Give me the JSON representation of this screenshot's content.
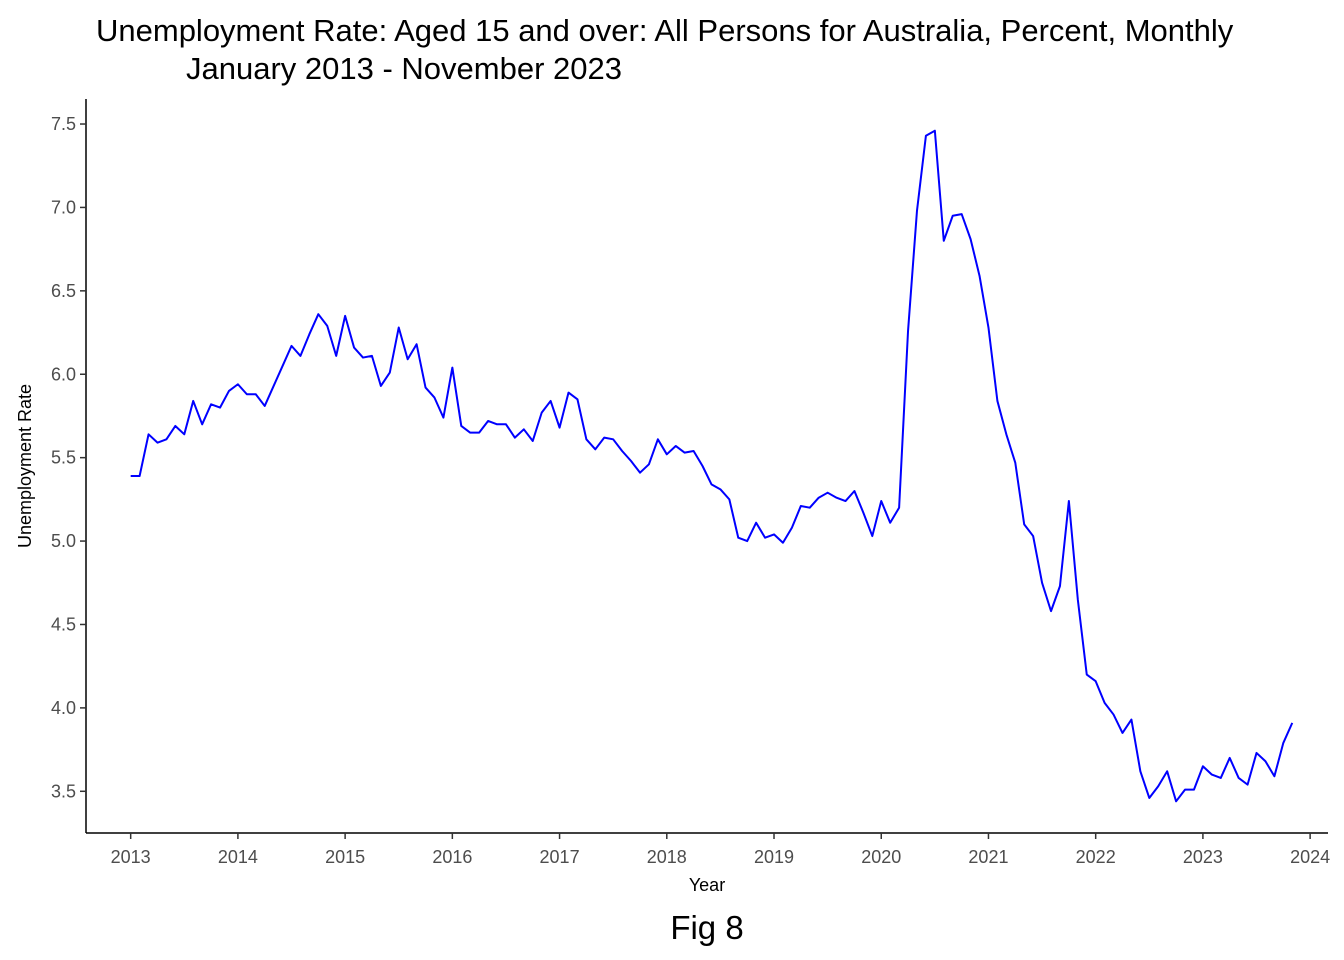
{
  "chart_data": {
    "type": "line",
    "title": "Unemployment Rate: Aged 15 and over: All Persons for Australia, Percent, Monthly",
    "subtitle": "January 2013 - November 2023",
    "xlabel": "Year",
    "ylabel": "Unemployment Rate",
    "caption": "Fig 8",
    "line_color": "#0000ff",
    "grid": false,
    "legend": "none",
    "xlim": [
      "2012-08",
      "2024-03"
    ],
    "ylim": [
      3.25,
      7.65
    ],
    "x_ticks": [
      "2013",
      "2014",
      "2015",
      "2016",
      "2017",
      "2018",
      "2019",
      "2020",
      "2021",
      "2022",
      "2023",
      "2024"
    ],
    "y_ticks": [
      "3.5",
      "4.0",
      "4.5",
      "5.0",
      "5.5",
      "6.0",
      "6.5",
      "7.0",
      "7.5"
    ],
    "series": [
      {
        "x": [
          "2013-01",
          "2013-02",
          "2013-03",
          "2013-04",
          "2013-05",
          "2013-06",
          "2013-07",
          "2013-08",
          "2013-09",
          "2013-10",
          "2013-11",
          "2013-12",
          "2014-01",
          "2014-02",
          "2014-03",
          "2014-04",
          "2014-05",
          "2014-06",
          "2014-07",
          "2014-08",
          "2014-09",
          "2014-10",
          "2014-11",
          "2014-12",
          "2015-01",
          "2015-02",
          "2015-03",
          "2015-04",
          "2015-05",
          "2015-06",
          "2015-07",
          "2015-08",
          "2015-09",
          "2015-10",
          "2015-11",
          "2015-12",
          "2016-01",
          "2016-02",
          "2016-03",
          "2016-04",
          "2016-05",
          "2016-06",
          "2016-07",
          "2016-08",
          "2016-09",
          "2016-10",
          "2016-11",
          "2016-12",
          "2017-01",
          "2017-02",
          "2017-03",
          "2017-04",
          "2017-05",
          "2017-06",
          "2017-07",
          "2017-08",
          "2017-09",
          "2017-10",
          "2017-11",
          "2017-12",
          "2018-01",
          "2018-02",
          "2018-03",
          "2018-04",
          "2018-05",
          "2018-06",
          "2018-07",
          "2018-08",
          "2018-09",
          "2018-10",
          "2018-11",
          "2018-12",
          "2019-01",
          "2019-02",
          "2019-03",
          "2019-04",
          "2019-05",
          "2019-06",
          "2019-07",
          "2019-08",
          "2019-09",
          "2019-10",
          "2019-11",
          "2019-12",
          "2020-01",
          "2020-02",
          "2020-03",
          "2020-04",
          "2020-05",
          "2020-06",
          "2020-07",
          "2020-08",
          "2020-09",
          "2020-10",
          "2020-11",
          "2020-12",
          "2021-01",
          "2021-02",
          "2021-03",
          "2021-04",
          "2021-05",
          "2021-06",
          "2021-07",
          "2021-08",
          "2021-09",
          "2021-10",
          "2021-11",
          "2021-12",
          "2022-01",
          "2022-02",
          "2022-03",
          "2022-04",
          "2022-05",
          "2022-06",
          "2022-07",
          "2022-08",
          "2022-09",
          "2022-10",
          "2022-11",
          "2022-12",
          "2023-01",
          "2023-02",
          "2023-03",
          "2023-04",
          "2023-05",
          "2023-06",
          "2023-07",
          "2023-08",
          "2023-09",
          "2023-10",
          "2023-11"
        ],
        "values": [
          5.39,
          5.39,
          5.64,
          5.59,
          5.61,
          5.69,
          5.64,
          5.84,
          5.7,
          5.82,
          5.8,
          5.9,
          5.94,
          5.88,
          5.88,
          5.81,
          5.93,
          6.05,
          6.17,
          6.11,
          6.24,
          6.36,
          6.29,
          6.11,
          6.35,
          6.16,
          6.1,
          6.11,
          5.93,
          6.01,
          6.28,
          6.09,
          6.18,
          5.92,
          5.86,
          5.74,
          6.04,
          5.69,
          5.65,
          5.65,
          5.72,
          5.7,
          5.7,
          5.62,
          5.67,
          5.6,
          5.77,
          5.84,
          5.68,
          5.89,
          5.85,
          5.61,
          5.55,
          5.62,
          5.61,
          5.54,
          5.48,
          5.41,
          5.46,
          5.61,
          5.52,
          5.57,
          5.53,
          5.54,
          5.45,
          5.34,
          5.31,
          5.25,
          5.02,
          5.0,
          5.11,
          5.02,
          5.04,
          4.99,
          5.08,
          5.21,
          5.2,
          5.26,
          5.29,
          5.26,
          5.24,
          5.3,
          5.17,
          5.03,
          5.24,
          5.11,
          5.2,
          6.26,
          6.98,
          7.43,
          7.46,
          6.8,
          6.95,
          6.96,
          6.81,
          6.59,
          6.28,
          5.84,
          5.64,
          5.47,
          5.1,
          5.03,
          4.75,
          4.58,
          4.73,
          5.24,
          4.65,
          4.2,
          4.16,
          4.03,
          3.96,
          3.85,
          3.93,
          3.62,
          3.46,
          3.53,
          3.62,
          3.44,
          3.51,
          3.51,
          3.65,
          3.6,
          3.58,
          3.7,
          3.58,
          3.54,
          3.73,
          3.68,
          3.59,
          3.79,
          3.91
        ]
      }
    ]
  }
}
